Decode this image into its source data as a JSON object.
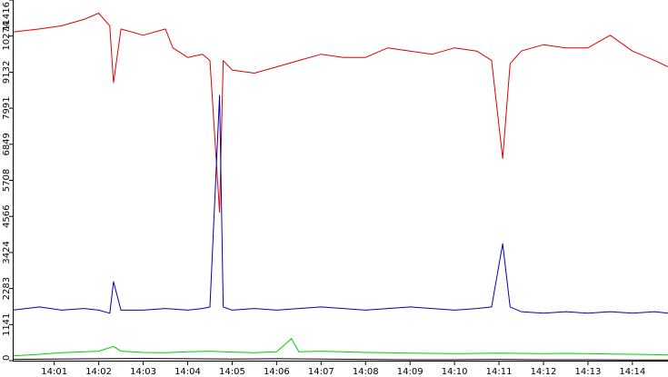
{
  "chart_data": {
    "type": "line",
    "title": "",
    "xlabel": "",
    "ylabel": "",
    "ylim": [
      0,
      11416
    ],
    "y_ticks": [
      0,
      1141,
      2283,
      3424,
      4566,
      5708,
      6849,
      7991,
      9132,
      10274,
      11416
    ],
    "y_tick_labels": [
      "0",
      "1141",
      "2283",
      "3424",
      "4566",
      "5708",
      "6849",
      "7991",
      "9132",
      "10274",
      "11416"
    ],
    "xlim": [
      "14:00:04",
      "14:14:48"
    ],
    "x_ticks": [
      "14:01",
      "14:02",
      "14:03",
      "14:04",
      "14:05",
      "14:06",
      "14:07",
      "14:08",
      "14:09",
      "14:10",
      "14:11",
      "14:12",
      "14:13",
      "14:14"
    ],
    "grid": false,
    "legend": "none",
    "series": [
      {
        "color": "#e00000",
        "x": [
          "14:00:04",
          "14:00:40",
          "14:01:10",
          "14:01:40",
          "14:02:00",
          "14:02:15",
          "14:02:20",
          "14:02:30",
          "14:03:00",
          "14:03:30",
          "14:03:40",
          "14:04:00",
          "14:04:20",
          "14:04:30",
          "14:04:43",
          "14:04:48",
          "14:05:00",
          "14:05:30",
          "14:06:00",
          "14:06:30",
          "14:07:00",
          "14:07:30",
          "14:08:00",
          "14:08:30",
          "14:09:00",
          "14:09:30",
          "14:10:00",
          "14:10:30",
          "14:10:50",
          "14:11:05",
          "14:11:15",
          "14:11:30",
          "14:12:00",
          "14:12:30",
          "14:13:00",
          "14:13:30",
          "14:14:00",
          "14:14:30",
          "14:14:48"
        ],
        "y": [
          10400,
          10500,
          10600,
          10800,
          11000,
          10600,
          8800,
          10500,
          10300,
          10500,
          9900,
          9600,
          9700,
          9500,
          4700,
          9500,
          9200,
          9100,
          9300,
          9500,
          9700,
          9600,
          9600,
          9900,
          9800,
          9700,
          9900,
          9800,
          9500,
          6400,
          9400,
          9800,
          10000,
          9900,
          9900,
          10300,
          9800,
          9500,
          9300
        ]
      },
      {
        "color": "#0000b4",
        "x": [
          "14:00:04",
          "14:00:40",
          "14:01:10",
          "14:01:40",
          "14:02:00",
          "14:02:15",
          "14:02:20",
          "14:02:30",
          "14:03:00",
          "14:03:30",
          "14:04:00",
          "14:04:20",
          "14:04:30",
          "14:04:43",
          "14:04:48",
          "14:05:00",
          "14:05:30",
          "14:06:00",
          "14:06:30",
          "14:07:00",
          "14:07:30",
          "14:08:00",
          "14:08:30",
          "14:09:00",
          "14:09:30",
          "14:10:00",
          "14:10:30",
          "14:10:50",
          "14:11:05",
          "14:11:15",
          "14:11:30",
          "14:12:00",
          "14:12:30",
          "14:13:00",
          "14:13:30",
          "14:14:00",
          "14:14:30",
          "14:14:48"
        ],
        "y": [
          1600,
          1700,
          1600,
          1650,
          1600,
          1500,
          2500,
          1600,
          1600,
          1650,
          1600,
          1650,
          1700,
          8400,
          1700,
          1600,
          1650,
          1600,
          1650,
          1700,
          1650,
          1600,
          1650,
          1700,
          1650,
          1600,
          1650,
          1700,
          3700,
          1700,
          1550,
          1500,
          1550,
          1500,
          1550,
          1500,
          1550,
          1500
        ]
      },
      {
        "color": "#00d000",
        "x": [
          "14:00:04",
          "14:00:40",
          "14:01:10",
          "14:01:40",
          "14:02:00",
          "14:02:20",
          "14:02:30",
          "14:03:00",
          "14:03:30",
          "14:04:00",
          "14:04:30",
          "14:05:00",
          "14:05:30",
          "14:06:00",
          "14:06:20",
          "14:06:30",
          "14:07:00",
          "14:07:30",
          "14:08:00",
          "14:08:30",
          "14:09:00",
          "14:09:30",
          "14:10:00",
          "14:10:30",
          "14:11:00",
          "14:11:30",
          "14:12:00",
          "14:12:30",
          "14:13:00",
          "14:13:30",
          "14:14:00",
          "14:14:30",
          "14:14:48"
        ],
        "y": [
          150,
          200,
          250,
          280,
          300,
          450,
          300,
          260,
          250,
          280,
          300,
          270,
          250,
          280,
          700,
          280,
          300,
          280,
          260,
          250,
          240,
          230,
          220,
          230,
          240,
          230,
          220,
          230,
          220,
          210,
          200,
          190,
          180
        ]
      },
      {
        "color": "#000000",
        "x": [
          "14:00:04",
          "14:01:00",
          "14:02:00",
          "14:03:00",
          "14:04:00",
          "14:05:00",
          "14:06:00",
          "14:07:00",
          "14:08:00",
          "14:09:00",
          "14:10:00",
          "14:11:00",
          "14:12:00",
          "14:13:00",
          "14:14:00",
          "14:14:48"
        ],
        "y": [
          40,
          50,
          60,
          70,
          60,
          50,
          60,
          50,
          40,
          30,
          30,
          40,
          30,
          30,
          20,
          20
        ]
      }
    ]
  }
}
